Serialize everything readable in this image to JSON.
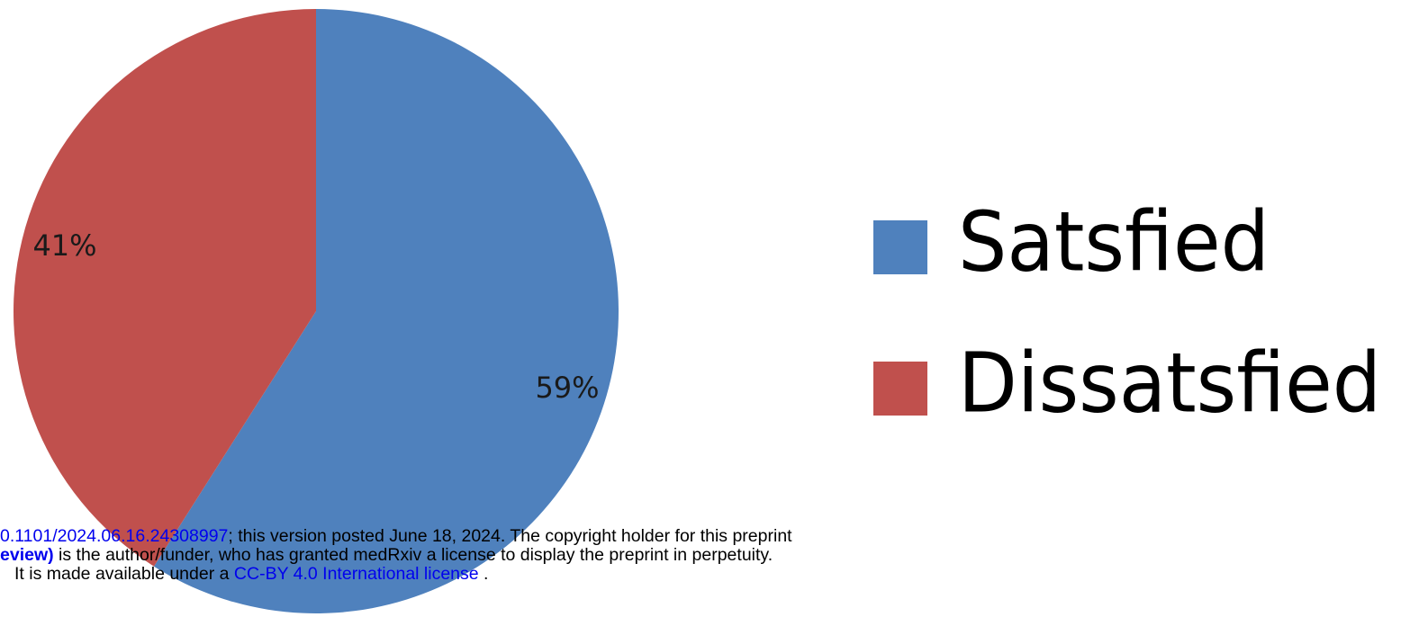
{
  "chart_data": {
    "type": "pie",
    "slices": [
      {
        "name": "Satsfied",
        "value": 59,
        "label": "59%",
        "color": "#4f81bd"
      },
      {
        "name": "Dissatsfied",
        "value": 41,
        "label": "41%",
        "color": "#c0504d"
      }
    ],
    "legend_placement": "right"
  },
  "footer": {
    "line1_link_a": "0.1101/2024.06.16.",
    "line1_link_b": "24308997",
    "line1_text": "; this version posted June 18, 2024. The copyright holder for this preprint",
    "line2_bold": "eview)",
    "line2_text": " is the author/funder, who has granted medRxiv a license to display the preprint in perpetuity.",
    "line3_pre": "It is made available under a ",
    "line3_link": "CC-BY 4.0 International license",
    "line3_post": " ."
  }
}
